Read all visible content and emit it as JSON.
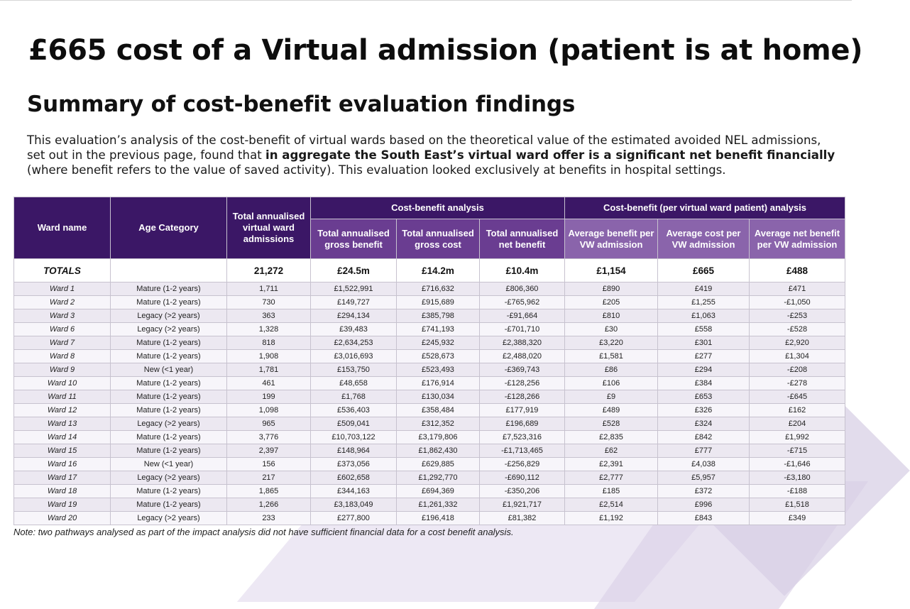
{
  "title": "£665 cost of  a Virtual admission (patient is at home)",
  "subtitle": "Summary of cost-benefit evaluation findings",
  "intro": {
    "part1": "This evaluation’s analysis of the cost-benefit of virtual wards based on the theoretical value of the estimated avoided NEL admissions, set out in the previous page, found that ",
    "bold": "in aggregate the South East’s virtual ward offer is a significant net benefit financially",
    "part2": " (where benefit refers to the value of saved activity). This evaluation looked exclusively at benefits in hospital settings."
  },
  "table": {
    "headers": {
      "ward_name": "Ward name",
      "age_category": "Age Category",
      "total_admissions": "Total annualised virtual ward admissions",
      "group_cba": "Cost-benefit analysis",
      "group_per_patient": "Cost-benefit (per virtual ward patient) analysis",
      "gross_benefit": "Total annualised gross benefit",
      "gross_cost": "Total annualised gross cost",
      "net_benefit": "Total annualised net benefit",
      "avg_benefit": "Average benefit per VW admission",
      "avg_cost": "Average cost per VW admission",
      "avg_net": "Average net benefit per VW admission"
    },
    "totals": {
      "label": "TOTALS",
      "age": "",
      "admissions": "21,272",
      "gross_benefit": "£24.5m",
      "gross_cost": "£14.2m",
      "net_benefit": "£10.4m",
      "avg_benefit": "£1,154",
      "avg_cost": "£665",
      "avg_net": "£488"
    },
    "rows": [
      {
        "ward": "Ward 1",
        "age": "Mature (1-2 years)",
        "admissions": "1,711",
        "gross_benefit": "£1,522,991",
        "gross_cost": "£716,632",
        "net_benefit": "£806,360",
        "avg_benefit": "£890",
        "avg_cost": "£419",
        "avg_net": "£471"
      },
      {
        "ward": "Ward 2",
        "age": "Mature (1-2 years)",
        "admissions": "730",
        "gross_benefit": "£149,727",
        "gross_cost": "£915,689",
        "net_benefit": "-£765,962",
        "avg_benefit": "£205",
        "avg_cost": "£1,255",
        "avg_net": "-£1,050"
      },
      {
        "ward": "Ward 3",
        "age": "Legacy (>2 years)",
        "admissions": "363",
        "gross_benefit": "£294,134",
        "gross_cost": "£385,798",
        "net_benefit": "-£91,664",
        "avg_benefit": "£810",
        "avg_cost": "£1,063",
        "avg_net": "-£253"
      },
      {
        "ward": "Ward 6",
        "age": "Legacy (>2 years)",
        "admissions": "1,328",
        "gross_benefit": "£39,483",
        "gross_cost": "£741,193",
        "net_benefit": "-£701,710",
        "avg_benefit": "£30",
        "avg_cost": "£558",
        "avg_net": "-£528"
      },
      {
        "ward": "Ward 7",
        "age": "Mature (1-2 years)",
        "admissions": "818",
        "gross_benefit": "£2,634,253",
        "gross_cost": "£245,932",
        "net_benefit": "£2,388,320",
        "avg_benefit": "£3,220",
        "avg_cost": "£301",
        "avg_net": "£2,920"
      },
      {
        "ward": "Ward 8",
        "age": "Mature (1-2 years)",
        "admissions": "1,908",
        "gross_benefit": "£3,016,693",
        "gross_cost": "£528,673",
        "net_benefit": "£2,488,020",
        "avg_benefit": "£1,581",
        "avg_cost": "£277",
        "avg_net": "£1,304"
      },
      {
        "ward": "Ward 9",
        "age": "New (<1 year)",
        "admissions": "1,781",
        "gross_benefit": "£153,750",
        "gross_cost": "£523,493",
        "net_benefit": "-£369,743",
        "avg_benefit": "£86",
        "avg_cost": "£294",
        "avg_net": "-£208"
      },
      {
        "ward": "Ward 10",
        "age": "Mature (1-2 years)",
        "admissions": "461",
        "gross_benefit": "£48,658",
        "gross_cost": "£176,914",
        "net_benefit": "-£128,256",
        "avg_benefit": "£106",
        "avg_cost": "£384",
        "avg_net": "-£278"
      },
      {
        "ward": "Ward 11",
        "age": "Mature (1-2 years)",
        "admissions": "199",
        "gross_benefit": "£1,768",
        "gross_cost": "£130,034",
        "net_benefit": "-£128,266",
        "avg_benefit": "£9",
        "avg_cost": "£653",
        "avg_net": "-£645"
      },
      {
        "ward": "Ward 12",
        "age": "Mature (1-2 years)",
        "admissions": "1,098",
        "gross_benefit": "£536,403",
        "gross_cost": "£358,484",
        "net_benefit": "£177,919",
        "avg_benefit": "£489",
        "avg_cost": "£326",
        "avg_net": "£162"
      },
      {
        "ward": "Ward 13",
        "age": "Legacy (>2 years)",
        "admissions": "965",
        "gross_benefit": "£509,041",
        "gross_cost": "£312,352",
        "net_benefit": "£196,689",
        "avg_benefit": "£528",
        "avg_cost": "£324",
        "avg_net": "£204"
      },
      {
        "ward": "Ward 14",
        "age": "Mature (1-2 years)",
        "admissions": "3,776",
        "gross_benefit": "£10,703,122",
        "gross_cost": "£3,179,806",
        "net_benefit": "£7,523,316",
        "avg_benefit": "£2,835",
        "avg_cost": "£842",
        "avg_net": "£1,992"
      },
      {
        "ward": "Ward 15",
        "age": "Mature (1-2 years)",
        "admissions": "2,397",
        "gross_benefit": "£148,964",
        "gross_cost": "£1,862,430",
        "net_benefit": "-£1,713,465",
        "avg_benefit": "£62",
        "avg_cost": "£777",
        "avg_net": "-£715"
      },
      {
        "ward": "Ward 16",
        "age": "New (<1 year)",
        "admissions": "156",
        "gross_benefit": "£373,056",
        "gross_cost": "£629,885",
        "net_benefit": "-£256,829",
        "avg_benefit": "£2,391",
        "avg_cost": "£4,038",
        "avg_net": "-£1,646"
      },
      {
        "ward": "Ward 17",
        "age": "Legacy (>2 years)",
        "admissions": "217",
        "gross_benefit": "£602,658",
        "gross_cost": "£1,292,770",
        "net_benefit": "-£690,112",
        "avg_benefit": "£2,777",
        "avg_cost": "£5,957",
        "avg_net": "-£3,180"
      },
      {
        "ward": "Ward 18",
        "age": "Mature (1-2 years)",
        "admissions": "1,865",
        "gross_benefit": "£344,163",
        "gross_cost": "£694,369",
        "net_benefit": "-£350,206",
        "avg_benefit": "£185",
        "avg_cost": "£372",
        "avg_net": "-£188"
      },
      {
        "ward": "Ward 19",
        "age": "Mature (1-2 years)",
        "admissions": "1,266",
        "gross_benefit": "£3,183,049",
        "gross_cost": "£1,261,332",
        "net_benefit": "£1,921,717",
        "avg_benefit": "£2,514",
        "avg_cost": "£996",
        "avg_net": "£1,518"
      },
      {
        "ward": "Ward 20",
        "age": "Legacy (>2 years)",
        "admissions": "233",
        "gross_benefit": "£277,800",
        "gross_cost": "£196,418",
        "net_benefit": "£81,382",
        "avg_benefit": "£1,192",
        "avg_cost": "£843",
        "avg_net": "£349"
      }
    ]
  },
  "note": "Note: two pathways analysed as part of the impact analysis did not have sufficient financial data for a cost benefit analysis.",
  "colors": {
    "header_dark": "#3b1766",
    "header_mid": "#6a3d91",
    "header_light": "#8a64ab"
  }
}
